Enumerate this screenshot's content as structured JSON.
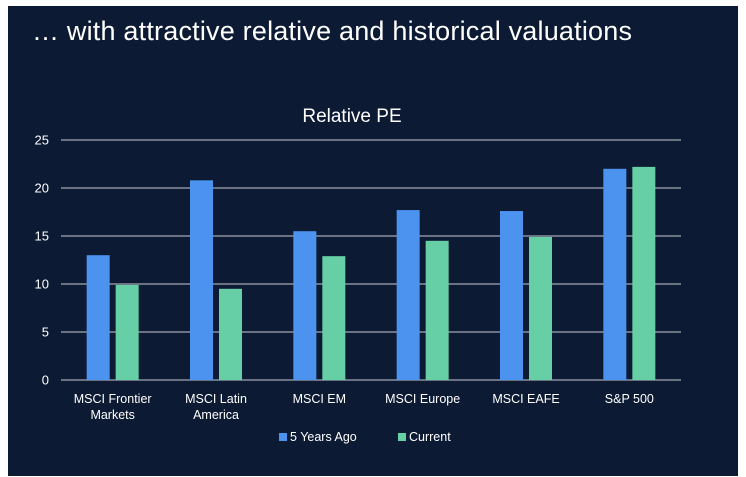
{
  "slide": {
    "title": "… with attractive relative and historical valuations"
  },
  "colors": {
    "background": "#0c1a33",
    "series_5y": "#4c93f0",
    "series_current": "#66cfa6",
    "text": "#ffffff"
  },
  "chart_data": {
    "type": "bar",
    "title": "Relative PE",
    "xlabel": "",
    "ylabel": "",
    "ylim": [
      0,
      25
    ],
    "yticks": [
      0,
      5,
      10,
      15,
      20,
      25
    ],
    "grid": true,
    "legend_position": "bottom",
    "categories": [
      [
        "MSCI Frontier",
        "Markets"
      ],
      [
        "MSCI Latin",
        "America"
      ],
      [
        "MSCI EM"
      ],
      [
        "MSCI Europe"
      ],
      [
        "MSCI EAFE"
      ],
      [
        "S&P 500"
      ]
    ],
    "series": [
      {
        "name": "5 Years Ago",
        "color": "#4c93f0",
        "values": [
          13.0,
          20.8,
          15.5,
          17.7,
          17.6,
          22.0
        ]
      },
      {
        "name": "Current",
        "color": "#66cfa6",
        "values": [
          9.9,
          9.5,
          12.9,
          14.5,
          14.9,
          22.2
        ]
      }
    ]
  }
}
